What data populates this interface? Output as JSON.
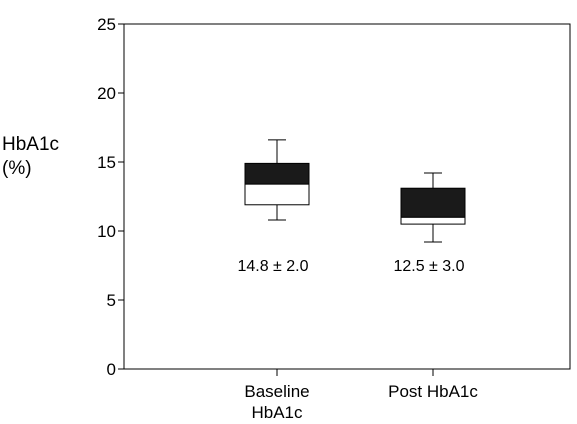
{
  "chart_data": {
    "type": "box",
    "ylabel_lines": [
      "HbA1c",
      "(%)"
    ],
    "ylim": [
      0,
      25
    ],
    "yticks": [
      0,
      5,
      10,
      15,
      20,
      25
    ],
    "grid": false,
    "categories": [
      {
        "label_lines": [
          "Baseline",
          "HbA1c"
        ],
        "annotation": "14.8 ± 2.0",
        "whisker_low": 10.8,
        "q1": 11.9,
        "median": 13.4,
        "q3": 14.9,
        "whisker_high": 16.6
      },
      {
        "label_lines": [
          "Post HbA1c"
        ],
        "annotation": "12.5 ± 3.0",
        "whisker_low": 9.2,
        "q1": 10.5,
        "median": 11.0,
        "q3": 13.1,
        "whisker_high": 14.2
      }
    ],
    "colors": {
      "box_upper": "#1a1a1a",
      "box_lower": "#ffffff",
      "axis": "#000000"
    }
  }
}
